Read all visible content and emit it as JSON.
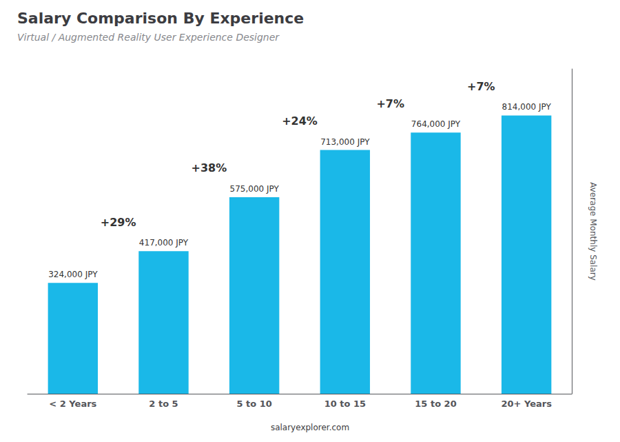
{
  "chart_data": {
    "type": "bar",
    "title": "Salary Comparison By Experience",
    "subtitle": "Virtual / Augmented Reality User Experience Designer",
    "categories": [
      "< 2 Years",
      "2 to 5",
      "5 to 10",
      "10 to 15",
      "15 to 20",
      "20+ Years"
    ],
    "values": [
      324000,
      417000,
      575000,
      713000,
      764000,
      814000
    ],
    "value_labels": [
      "324,000 JPY",
      "417,000 JPY",
      "575,000 JPY",
      "713,000 JPY",
      "764,000 JPY",
      "814,000 JPY"
    ],
    "data_labels": true,
    "color": "#1ab8e8",
    "ylabel": "Average Monthly Salary",
    "ylim": [
      0,
      950000
    ],
    "tick_labels": "x",
    "grid": false,
    "annotations": [
      "+29%",
      "+38%",
      "+24%",
      "+7%",
      "+7%"
    ],
    "source": "salaryexplorer.com"
  }
}
